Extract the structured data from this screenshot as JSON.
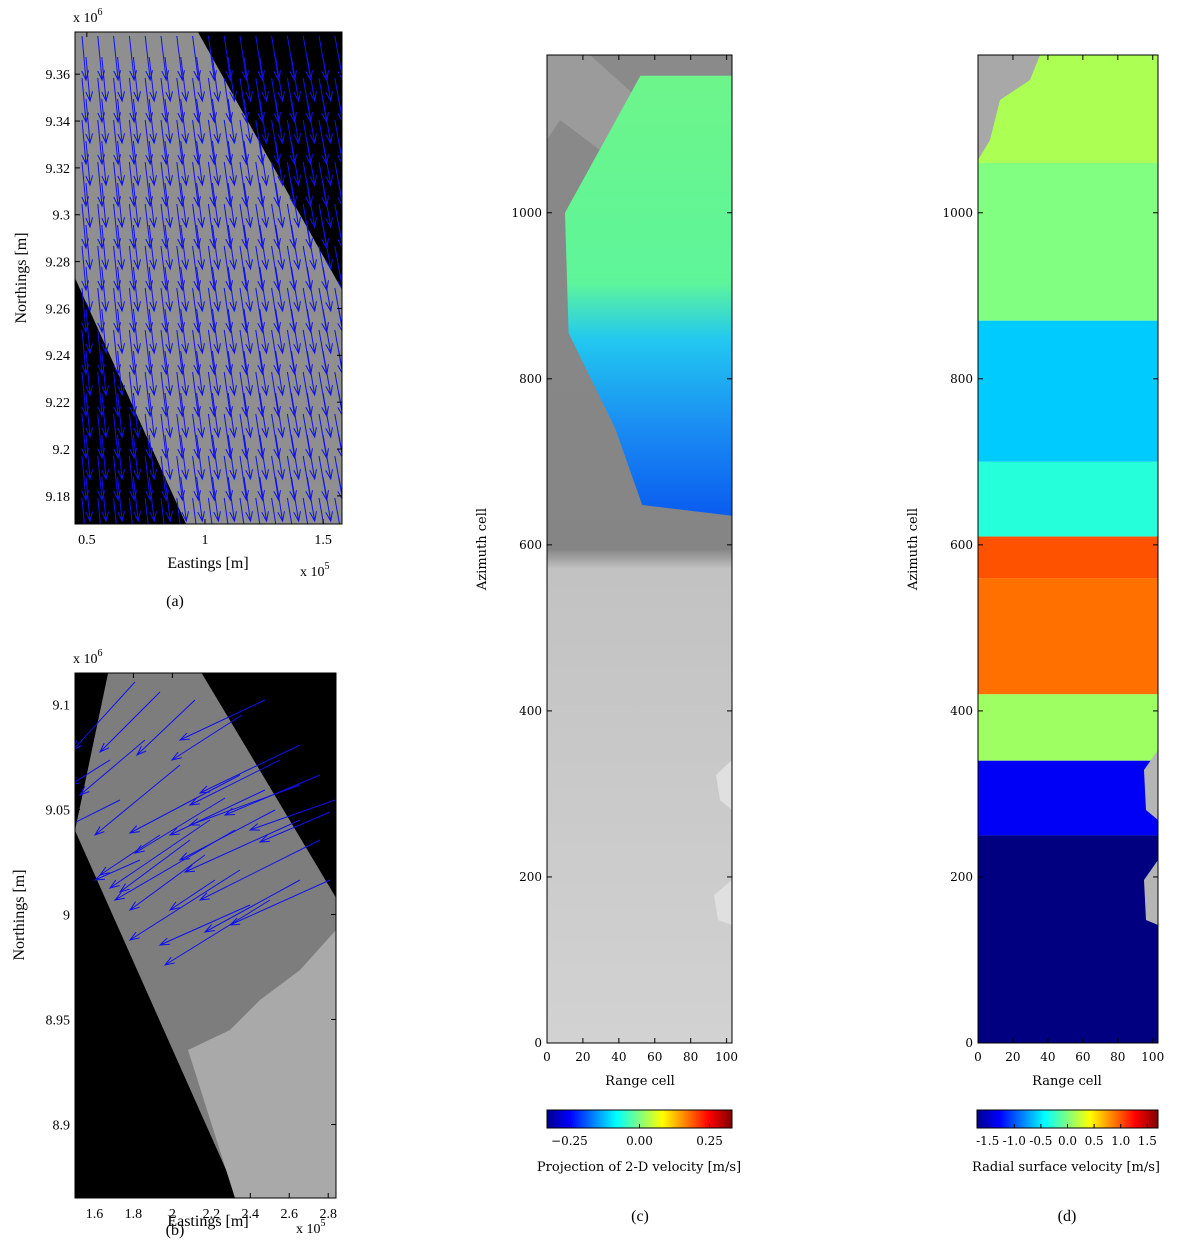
{
  "chart_data": [
    {
      "id": "a",
      "type": "quiver",
      "caption": "(a)",
      "xlabel": "Eastings [m]",
      "ylabel": "Northings [m]",
      "x_multiplier": "x 10",
      "x_multiplier_exp": "5",
      "y_multiplier": "x 10",
      "y_multiplier_exp": "6",
      "xlim": [
        0.45,
        1.58
      ],
      "ylim": [
        9.168,
        9.378
      ],
      "xticks": [
        0.5,
        1,
        1.5
      ],
      "xtick_labels": [
        "0.5",
        "1",
        "1.5"
      ],
      "yticks": [
        9.18,
        9.2,
        9.22,
        9.24,
        9.26,
        9.28,
        9.3,
        9.32,
        9.34,
        9.36
      ],
      "ytick_labels": [
        "9.18",
        "9.2",
        "9.22",
        "9.24",
        "9.26",
        "9.28",
        "9.3",
        "9.32",
        "9.34",
        "9.36"
      ],
      "swath_polygon": [
        [
          0.45,
          9.378
        ],
        [
          0.97,
          9.378
        ],
        [
          1.58,
          9.268
        ],
        [
          1.58,
          9.168
        ],
        [
          0.92,
          9.168
        ],
        [
          0.45,
          9.273
        ]
      ],
      "background": "SAR amplitude image (grayscale)",
      "arrow_color": "#1010ee"
    },
    {
      "id": "b",
      "type": "quiver",
      "caption": "(b)",
      "xlabel": "Eastings [m]",
      "ylabel": "Northings [m]",
      "x_multiplier": "x 10",
      "x_multiplier_exp": "5",
      "y_multiplier": "x 10",
      "y_multiplier_exp": "6",
      "xlim": [
        1.5,
        2.84
      ],
      "ylim": [
        8.865,
        9.115
      ],
      "xticks": [
        1.6,
        1.8,
        2,
        2.2,
        2.4,
        2.6,
        2.8
      ],
      "xtick_labels": [
        "1.6",
        "1.8",
        "2",
        "2.2",
        "2.4",
        "2.6",
        "2.8"
      ],
      "yticks": [
        8.9,
        8.95,
        9,
        9.05,
        9.1
      ],
      "ytick_labels": [
        "8.9",
        "8.95",
        "9",
        "9.05",
        "9.1"
      ],
      "swath_polygon": [
        [
          1.5,
          9.04
        ],
        [
          1.67,
          9.115
        ],
        [
          2.15,
          9.115
        ],
        [
          2.84,
          9.008
        ],
        [
          2.84,
          8.865
        ],
        [
          2.34,
          8.865
        ],
        [
          1.5,
          9.115
        ]
      ],
      "background": "SAR amplitude image (grayscale)",
      "arrow_color": "#1010ee"
    },
    {
      "id": "c",
      "type": "heatmap",
      "caption": "(c)",
      "xlabel": "Range cell",
      "ylabel": "Azimuth cell",
      "xlim": [
        0,
        103
      ],
      "ylim": [
        0,
        1190
      ],
      "xticks": [
        0,
        20,
        40,
        60,
        80,
        100
      ],
      "xtick_labels": [
        "0",
        "20",
        "40",
        "60",
        "80",
        "100"
      ],
      "yticks": [
        0,
        200,
        400,
        600,
        800,
        1000
      ],
      "ytick_labels": [
        "0",
        "200",
        "400",
        "600",
        "800",
        "1000"
      ],
      "colorbar_label": "Projection of 2-D velocity [m/s]",
      "colorbar_range": [
        -0.33,
        0.33
      ],
      "colorbar_ticks": [
        -0.25,
        0.0,
        0.25
      ],
      "colorbar_tick_labels": [
        "−0.25",
        "0.00",
        "0.25"
      ],
      "colormap": "jet",
      "velocity_region": [
        [
          10,
          1165
        ],
        [
          103,
          1165
        ],
        [
          103,
          635
        ],
        [
          53,
          648
        ],
        [
          38,
          740
        ],
        [
          12,
          855
        ],
        [
          10,
          1000
        ],
        [
          52,
          1165
        ]
      ],
      "velocity_region_values": {
        "upper": 0.05,
        "lower": -0.22
      },
      "background": "SAR amplitude image (grayscale)"
    },
    {
      "id": "d",
      "type": "heatmap",
      "caption": "(d)",
      "xlabel": "Range cell",
      "ylabel": "Azimuth cell",
      "xlim": [
        0,
        103
      ],
      "ylim": [
        0,
        1190
      ],
      "xticks": [
        0,
        20,
        40,
        60,
        80,
        100
      ],
      "xtick_labels": [
        "0",
        "20",
        "40",
        "60",
        "80",
        "100"
      ],
      "yticks": [
        0,
        200,
        400,
        600,
        800,
        1000
      ],
      "ytick_labels": [
        "0",
        "200",
        "400",
        "600",
        "800",
        "1000"
      ],
      "colorbar_label": "Radial surface velocity [m/s]",
      "colorbar_range": [
        -1.7,
        1.7
      ],
      "colorbar_ticks": [
        -1.5,
        -1.0,
        -0.5,
        0.0,
        0.5,
        1.0,
        1.5
      ],
      "colorbar_tick_labels": [
        "-1.5",
        "-1.0",
        "-0.5",
        "0.0",
        "0.5",
        "1.0",
        "1.5"
      ],
      "colormap": "jet",
      "bands": [
        {
          "azimuth_from": 1060,
          "azimuth_to": 1190,
          "velocity": 0.15
        },
        {
          "azimuth_from": 870,
          "azimuth_to": 1060,
          "velocity": 0.0
        },
        {
          "azimuth_from": 700,
          "azimuth_to": 870,
          "velocity": -0.6
        },
        {
          "azimuth_from": 610,
          "azimuth_to": 700,
          "velocity": -0.3
        },
        {
          "azimuth_from": 560,
          "azimuth_to": 610,
          "velocity": 1.0
        },
        {
          "azimuth_from": 420,
          "azimuth_to": 560,
          "velocity": 0.9
        },
        {
          "azimuth_from": 340,
          "azimuth_to": 420,
          "velocity": 0.1
        },
        {
          "azimuth_from": 250,
          "azimuth_to": 340,
          "velocity": -1.3
        },
        {
          "azimuth_from": 0,
          "azimuth_to": 250,
          "velocity": -1.7
        }
      ]
    }
  ]
}
